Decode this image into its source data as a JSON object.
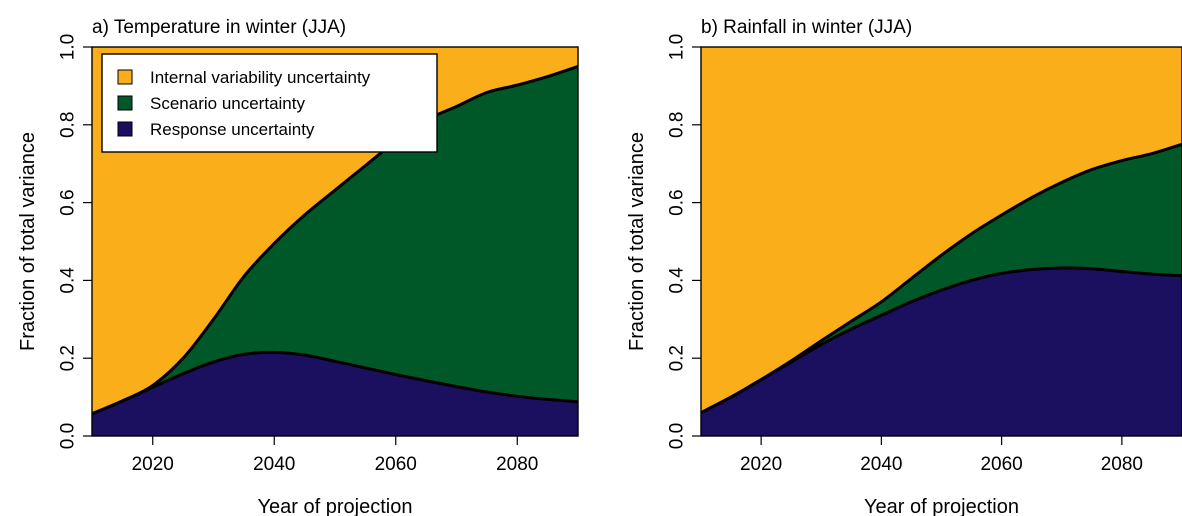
{
  "colors": {
    "internal": "#F9AE1A",
    "scenario": "#005828",
    "response": "#1B1060"
  },
  "chart_data": [
    {
      "type": "area",
      "title": "a) Temperature in winter (JJA)",
      "xlabel": "Year of projection",
      "ylabel": "Fraction of total variance",
      "xlim": [
        2010,
        2090
      ],
      "ylim": [
        0,
        1
      ],
      "x_ticks": [
        "2020",
        "2040",
        "2060",
        "2080"
      ],
      "y_ticks": [
        "0.0",
        "0.2",
        "0.4",
        "0.6",
        "0.8",
        "1.0"
      ],
      "grid": false,
      "stacked": true,
      "legend": {
        "position": "top-left",
        "entries": [
          {
            "name": "Internal variability uncertainty",
            "color_key": "internal"
          },
          {
            "name": "Scenario uncertainty",
            "color_key": "scenario"
          },
          {
            "name": "Response uncertainty",
            "color_key": "response"
          }
        ]
      },
      "x": [
        2010,
        2015,
        2020,
        2025,
        2030,
        2035,
        2040,
        2045,
        2050,
        2055,
        2060,
        2065,
        2070,
        2075,
        2080,
        2085,
        2090
      ],
      "series": [
        {
          "name": "Response uncertainty",
          "color_key": "response",
          "values": [
            0.057,
            0.09,
            0.125,
            0.16,
            0.19,
            0.21,
            0.215,
            0.208,
            0.192,
            0.175,
            0.158,
            0.142,
            0.127,
            0.113,
            0.102,
            0.094,
            0.088
          ]
        },
        {
          "name": "Scenario uncertainty",
          "color_key": "scenario",
          "values": [
            0.0,
            0.0,
            0.005,
            0.04,
            0.11,
            0.2,
            0.28,
            0.36,
            0.44,
            0.52,
            0.6,
            0.67,
            0.72,
            0.77,
            0.8,
            0.83,
            0.862
          ]
        },
        {
          "name": "Internal variability uncertainty",
          "color_key": "internal",
          "values": [
            0.943,
            0.91,
            0.87,
            0.8,
            0.7,
            0.59,
            0.505,
            0.432,
            0.368,
            0.305,
            0.242,
            0.188,
            0.153,
            0.117,
            0.098,
            0.076,
            0.05
          ]
        }
      ]
    },
    {
      "type": "area",
      "title": "b) Rainfall in winter (JJA)",
      "xlabel": "Year of projection",
      "ylabel": "Fraction of total variance",
      "xlim": [
        2010,
        2090
      ],
      "ylim": [
        0,
        1
      ],
      "x_ticks": [
        "2020",
        "2040",
        "2060",
        "2080"
      ],
      "y_ticks": [
        "0.0",
        "0.2",
        "0.4",
        "0.6",
        "0.8",
        "1.0"
      ],
      "grid": false,
      "stacked": true,
      "x": [
        2010,
        2015,
        2020,
        2025,
        2030,
        2035,
        2040,
        2045,
        2050,
        2055,
        2060,
        2065,
        2070,
        2075,
        2080,
        2085,
        2090
      ],
      "series": [
        {
          "name": "Response uncertainty",
          "color_key": "response",
          "values": [
            0.06,
            0.1,
            0.145,
            0.19,
            0.235,
            0.275,
            0.31,
            0.345,
            0.375,
            0.4,
            0.418,
            0.428,
            0.432,
            0.43,
            0.423,
            0.416,
            0.412
          ]
        },
        {
          "name": "Scenario uncertainty",
          "color_key": "scenario",
          "values": [
            0.0,
            0.0,
            0.0,
            0.003,
            0.01,
            0.02,
            0.035,
            0.06,
            0.09,
            0.12,
            0.15,
            0.185,
            0.22,
            0.255,
            0.285,
            0.31,
            0.338
          ]
        },
        {
          "name": "Internal variability uncertainty",
          "color_key": "internal",
          "values": [
            0.94,
            0.9,
            0.855,
            0.807,
            0.755,
            0.705,
            0.655,
            0.595,
            0.535,
            0.48,
            0.432,
            0.387,
            0.348,
            0.315,
            0.292,
            0.274,
            0.25
          ]
        }
      ]
    }
  ]
}
